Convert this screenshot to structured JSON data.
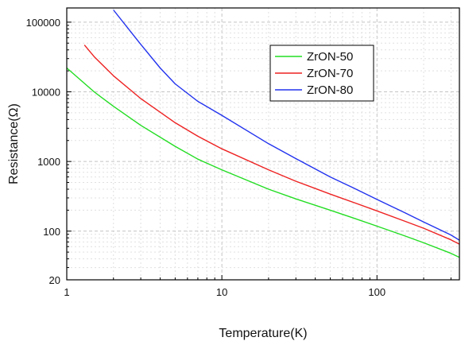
{
  "chart_data": {
    "type": "line",
    "xlabel": "Temperature(K)",
    "ylabel": "Resistance(Ω)",
    "x_scale": "log",
    "y_scale": "log",
    "xlim": [
      1,
      340
    ],
    "ylim": [
      20,
      160000
    ],
    "x_ticks": [
      1,
      10,
      100
    ],
    "x_tick_labels": [
      "1",
      "10",
      "100"
    ],
    "y_ticks": [
      20,
      100,
      1000,
      10000,
      100000
    ],
    "y_tick_labels": [
      "20",
      "100",
      "1000",
      "10000",
      "100000"
    ],
    "grid": true,
    "legend_position": "top-right",
    "series": [
      {
        "name": "ZrON-50",
        "color": "#22dd22",
        "x": [
          1,
          1.5,
          2,
          3,
          5,
          7,
          10,
          20,
          30,
          50,
          70,
          100,
          150,
          200,
          300,
          340
        ],
        "y": [
          22000,
          10000,
          6200,
          3300,
          1650,
          1080,
          760,
          400,
          290,
          200,
          155,
          118,
          86,
          68,
          48,
          42
        ]
      },
      {
        "name": "ZrON-70",
        "color": "#ee2222",
        "x": [
          1.3,
          1.5,
          2,
          3,
          5,
          7,
          10,
          20,
          30,
          50,
          70,
          100,
          150,
          200,
          300,
          340
        ],
        "y": [
          47000,
          32000,
          17000,
          8000,
          3600,
          2300,
          1520,
          760,
          520,
          340,
          260,
          195,
          140,
          110,
          75,
          65
        ]
      },
      {
        "name": "ZrON-80",
        "color": "#2233ee",
        "x": [
          2,
          2.5,
          3,
          4,
          5,
          7,
          10,
          20,
          30,
          50,
          70,
          100,
          150,
          200,
          300,
          340
        ],
        "y": [
          150000,
          80000,
          48000,
          22000,
          13000,
          7300,
          4600,
          1800,
          1100,
          600,
          420,
          285,
          185,
          135,
          88,
          74
        ]
      }
    ]
  }
}
